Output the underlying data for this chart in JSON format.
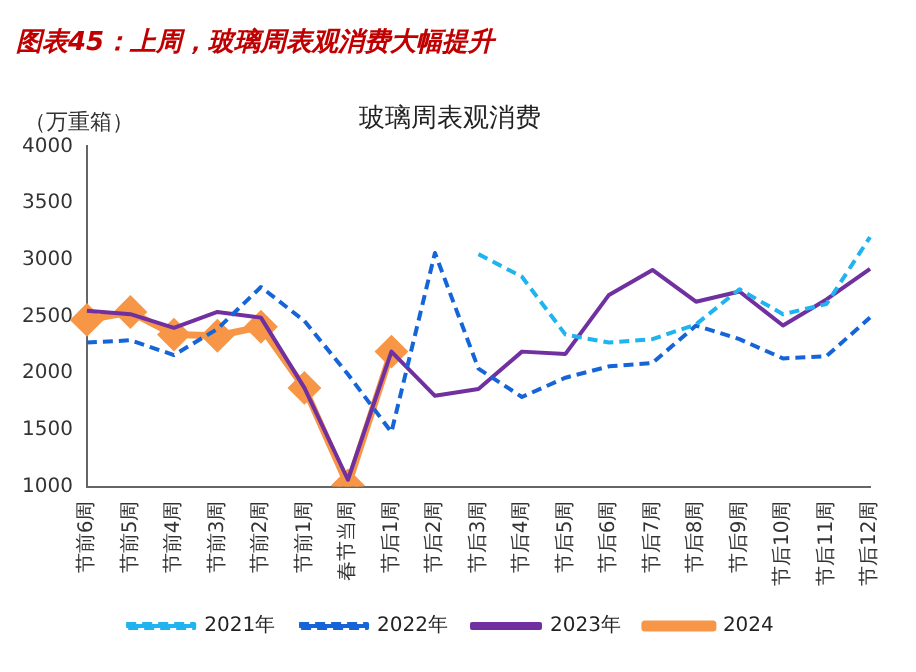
{
  "chart_data": {
    "type": "line",
    "title": "图表45：上周，玻璃周表观消费大幅提升",
    "subtitle": "玻璃周表观消费",
    "ylabel": "（万重箱）",
    "categories": [
      "节前6周",
      "节前5周",
      "节前4周",
      "节前3周",
      "节前2周",
      "节前1周",
      "春节当周",
      "节后1周",
      "节后2周",
      "节后3周",
      "节后4周",
      "节后5周",
      "节后6周",
      "节后7周",
      "节后8周",
      "节后9周",
      "节后10周",
      "节后11周",
      "节后12周"
    ],
    "series": [
      {
        "name": "2021年",
        "color": "#1fb3f0",
        "line_style": "dashed",
        "marker": "none",
        "values": [
          null,
          null,
          null,
          null,
          null,
          null,
          null,
          null,
          null,
          3050,
          2850,
          2340,
          2270,
          2300,
          2430,
          2740,
          2520,
          2610,
          3200
        ]
      },
      {
        "name": "2022年",
        "color": "#1565d8",
        "line_style": "dashed",
        "marker": "none",
        "values": [
          2270,
          2290,
          2160,
          2390,
          2760,
          2460,
          1990,
          1480,
          3060,
          2040,
          1790,
          1960,
          2060,
          2090,
          2420,
          2300,
          2130,
          2150,
          2490
        ]
      },
      {
        "name": "2023年",
        "color": "#7030a0",
        "line_style": "solid",
        "marker": "none",
        "values": [
          2550,
          2520,
          2400,
          2540,
          2490,
          1870,
          1060,
          2190,
          1800,
          1860,
          2190,
          2170,
          2690,
          2910,
          2630,
          2720,
          2420,
          2650,
          2920
        ]
      },
      {
        "name": "2024",
        "color": "#f79646",
        "line_style": "solid",
        "marker": "diamond",
        "values": [
          2470,
          2540,
          2340,
          2330,
          2410,
          1870,
          1010,
          2190,
          null,
          null,
          null,
          null,
          null,
          null,
          null,
          null,
          null,
          null,
          null
        ]
      }
    ],
    "ylim": [
      1000,
      4000
    ],
    "yticks": [
      1000,
      1500,
      2000,
      2500,
      3000,
      3500,
      4000
    ],
    "grid": false,
    "legend": "bottom"
  }
}
